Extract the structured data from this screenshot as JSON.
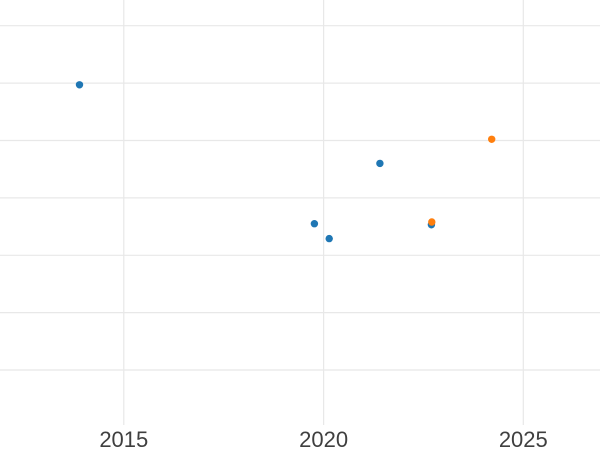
{
  "chart_data": {
    "type": "scatter",
    "title": "",
    "xlabel": "",
    "ylabel": "",
    "background_color": "#ffffff",
    "gridline_color": "#e8e8e8",
    "tick_label_color": "#3f3f3f",
    "legend": "none",
    "x_axis": {
      "range": [
        2011.9,
        2026.92
      ],
      "tick_values": [
        2015,
        2020,
        2025
      ],
      "tick_labels": [
        "2015",
        "2020",
        "2025"
      ],
      "grid": true
    },
    "y_axis": {
      "range": [
        0.042,
        7.448
      ],
      "gridline_values": [
        1,
        2,
        3,
        4,
        5,
        6,
        7
      ],
      "tick_labels": [],
      "grid": true
    },
    "series": [
      {
        "name": "blue",
        "color": "#1f77b4",
        "marker": "circle",
        "points": [
          {
            "x": 2013.89,
            "y": 5.97
          },
          {
            "x": 2019.77,
            "y": 3.55
          },
          {
            "x": 2020.14,
            "y": 3.29
          },
          {
            "x": 2021.41,
            "y": 4.6
          },
          {
            "x": 2022.7,
            "y": 3.53
          }
        ]
      },
      {
        "name": "orange",
        "color": "#ff7f0e",
        "marker": "circle",
        "points": [
          {
            "x": 2022.71,
            "y": 3.58
          },
          {
            "x": 2024.21,
            "y": 5.02
          }
        ]
      }
    ]
  }
}
